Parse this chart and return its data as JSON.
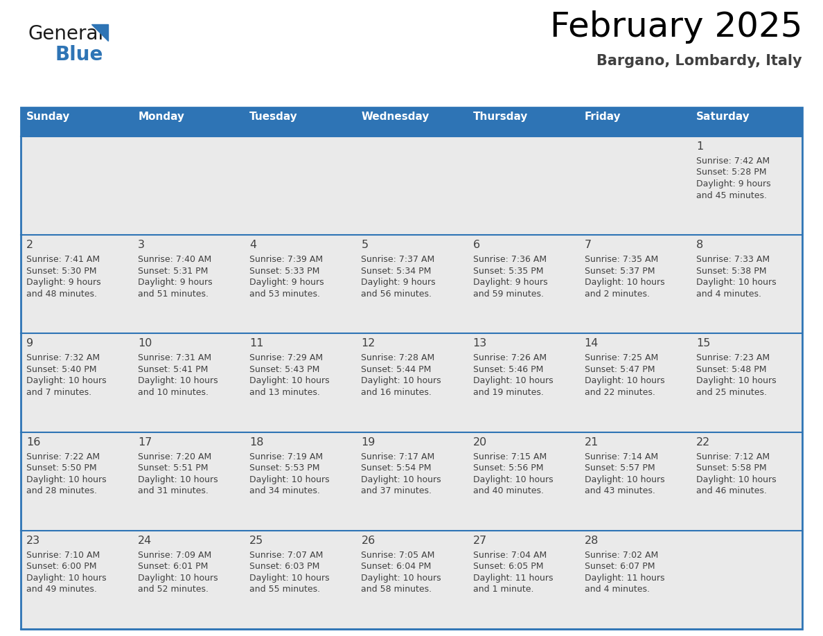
{
  "title": "February 2025",
  "subtitle": "Bargano, Lombardy, Italy",
  "header_bg": "#2E74B5",
  "header_text": "#FFFFFF",
  "cell_bg": "#EAEAEA",
  "border_color": "#2E74B5",
  "day_headers": [
    "Sunday",
    "Monday",
    "Tuesday",
    "Wednesday",
    "Thursday",
    "Friday",
    "Saturday"
  ],
  "title_color": "#000000",
  "subtitle_color": "#404040",
  "text_color": "#404040",
  "days": [
    {
      "day": 1,
      "col": 6,
      "row": 0,
      "sunrise": "7:42 AM",
      "sunset": "5:28 PM",
      "daylight": "9 hours and 45 minutes."
    },
    {
      "day": 2,
      "col": 0,
      "row": 1,
      "sunrise": "7:41 AM",
      "sunset": "5:30 PM",
      "daylight": "9 hours and 48 minutes."
    },
    {
      "day": 3,
      "col": 1,
      "row": 1,
      "sunrise": "7:40 AM",
      "sunset": "5:31 PM",
      "daylight": "9 hours and 51 minutes."
    },
    {
      "day": 4,
      "col": 2,
      "row": 1,
      "sunrise": "7:39 AM",
      "sunset": "5:33 PM",
      "daylight": "9 hours and 53 minutes."
    },
    {
      "day": 5,
      "col": 3,
      "row": 1,
      "sunrise": "7:37 AM",
      "sunset": "5:34 PM",
      "daylight": "9 hours and 56 minutes."
    },
    {
      "day": 6,
      "col": 4,
      "row": 1,
      "sunrise": "7:36 AM",
      "sunset": "5:35 PM",
      "daylight": "9 hours and 59 minutes."
    },
    {
      "day": 7,
      "col": 5,
      "row": 1,
      "sunrise": "7:35 AM",
      "sunset": "5:37 PM",
      "daylight": "10 hours and 2 minutes."
    },
    {
      "day": 8,
      "col": 6,
      "row": 1,
      "sunrise": "7:33 AM",
      "sunset": "5:38 PM",
      "daylight": "10 hours and 4 minutes."
    },
    {
      "day": 9,
      "col": 0,
      "row": 2,
      "sunrise": "7:32 AM",
      "sunset": "5:40 PM",
      "daylight": "10 hours and 7 minutes."
    },
    {
      "day": 10,
      "col": 1,
      "row": 2,
      "sunrise": "7:31 AM",
      "sunset": "5:41 PM",
      "daylight": "10 hours and 10 minutes."
    },
    {
      "day": 11,
      "col": 2,
      "row": 2,
      "sunrise": "7:29 AM",
      "sunset": "5:43 PM",
      "daylight": "10 hours and 13 minutes."
    },
    {
      "day": 12,
      "col": 3,
      "row": 2,
      "sunrise": "7:28 AM",
      "sunset": "5:44 PM",
      "daylight": "10 hours and 16 minutes."
    },
    {
      "day": 13,
      "col": 4,
      "row": 2,
      "sunrise": "7:26 AM",
      "sunset": "5:46 PM",
      "daylight": "10 hours and 19 minutes."
    },
    {
      "day": 14,
      "col": 5,
      "row": 2,
      "sunrise": "7:25 AM",
      "sunset": "5:47 PM",
      "daylight": "10 hours and 22 minutes."
    },
    {
      "day": 15,
      "col": 6,
      "row": 2,
      "sunrise": "7:23 AM",
      "sunset": "5:48 PM",
      "daylight": "10 hours and 25 minutes."
    },
    {
      "day": 16,
      "col": 0,
      "row": 3,
      "sunrise": "7:22 AM",
      "sunset": "5:50 PM",
      "daylight": "10 hours and 28 minutes."
    },
    {
      "day": 17,
      "col": 1,
      "row": 3,
      "sunrise": "7:20 AM",
      "sunset": "5:51 PM",
      "daylight": "10 hours and 31 minutes."
    },
    {
      "day": 18,
      "col": 2,
      "row": 3,
      "sunrise": "7:19 AM",
      "sunset": "5:53 PM",
      "daylight": "10 hours and 34 minutes."
    },
    {
      "day": 19,
      "col": 3,
      "row": 3,
      "sunrise": "7:17 AM",
      "sunset": "5:54 PM",
      "daylight": "10 hours and 37 minutes."
    },
    {
      "day": 20,
      "col": 4,
      "row": 3,
      "sunrise": "7:15 AM",
      "sunset": "5:56 PM",
      "daylight": "10 hours and 40 minutes."
    },
    {
      "day": 21,
      "col": 5,
      "row": 3,
      "sunrise": "7:14 AM",
      "sunset": "5:57 PM",
      "daylight": "10 hours and 43 minutes."
    },
    {
      "day": 22,
      "col": 6,
      "row": 3,
      "sunrise": "7:12 AM",
      "sunset": "5:58 PM",
      "daylight": "10 hours and 46 minutes."
    },
    {
      "day": 23,
      "col": 0,
      "row": 4,
      "sunrise": "7:10 AM",
      "sunset": "6:00 PM",
      "daylight": "10 hours and 49 minutes."
    },
    {
      "day": 24,
      "col": 1,
      "row": 4,
      "sunrise": "7:09 AM",
      "sunset": "6:01 PM",
      "daylight": "10 hours and 52 minutes."
    },
    {
      "day": 25,
      "col": 2,
      "row": 4,
      "sunrise": "7:07 AM",
      "sunset": "6:03 PM",
      "daylight": "10 hours and 55 minutes."
    },
    {
      "day": 26,
      "col": 3,
      "row": 4,
      "sunrise": "7:05 AM",
      "sunset": "6:04 PM",
      "daylight": "10 hours and 58 minutes."
    },
    {
      "day": 27,
      "col": 4,
      "row": 4,
      "sunrise": "7:04 AM",
      "sunset": "6:05 PM",
      "daylight": "11 hours and 1 minute."
    },
    {
      "day": 28,
      "col": 5,
      "row": 4,
      "sunrise": "7:02 AM",
      "sunset": "6:07 PM",
      "daylight": "11 hours and 4 minutes."
    }
  ]
}
